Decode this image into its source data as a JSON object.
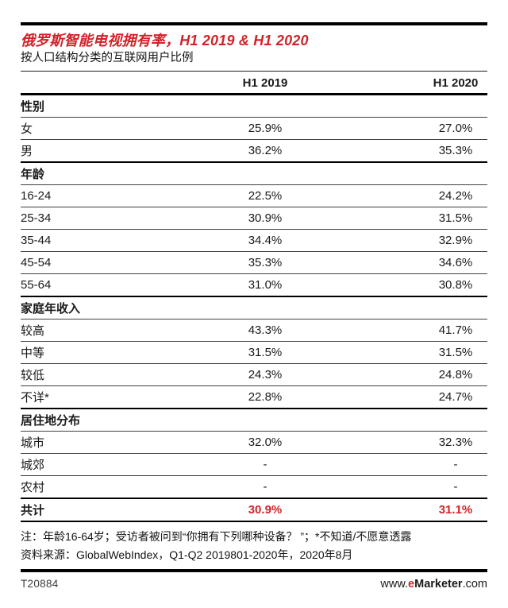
{
  "colors": {
    "accent": "#d2232a",
    "rule": "#000000",
    "text": "#1a1a1a"
  },
  "header": {
    "title": "俄罗斯智能电视拥有率，H1 2019 & H1 2020",
    "subtitle": "按人口结构分类的互联网用户比例"
  },
  "chart_data": {
    "type": "table",
    "title": "俄罗斯智能电视拥有率，H1 2019 & H1 2020",
    "subtitle": "按人口结构分类的互联网用户比例",
    "columns": [
      "H1 2019",
      "H1 2020"
    ],
    "sections": [
      {
        "header": "性别",
        "rows": [
          {
            "label": "女",
            "h1_2019": "25.9%",
            "h1_2020": "27.0%"
          },
          {
            "label": "男",
            "h1_2019": "36.2%",
            "h1_2020": "35.3%"
          }
        ]
      },
      {
        "header": "年龄",
        "rows": [
          {
            "label": "16-24",
            "h1_2019": "22.5%",
            "h1_2020": "24.2%"
          },
          {
            "label": "25-34",
            "h1_2019": "30.9%",
            "h1_2020": "31.5%"
          },
          {
            "label": "35-44",
            "h1_2019": "34.4%",
            "h1_2020": "32.9%"
          },
          {
            "label": "45-54",
            "h1_2019": "35.3%",
            "h1_2020": "34.6%"
          },
          {
            "label": "55-64",
            "h1_2019": "31.0%",
            "h1_2020": "30.8%"
          }
        ]
      },
      {
        "header": "家庭年收入",
        "rows": [
          {
            "label": "较高",
            "h1_2019": "43.3%",
            "h1_2020": "41.7%"
          },
          {
            "label": "中等",
            "h1_2019": "31.5%",
            "h1_2020": "31.5%"
          },
          {
            "label": "较低",
            "h1_2019": "24.3%",
            "h1_2020": "24.8%"
          },
          {
            "label": "不详*",
            "h1_2019": "22.8%",
            "h1_2020": "24.7%"
          }
        ]
      },
      {
        "header": "居住地分布",
        "rows": [
          {
            "label": "城市",
            "h1_2019": "32.0%",
            "h1_2020": "32.3%"
          },
          {
            "label": "城郊",
            "h1_2019": "-",
            "h1_2020": "-"
          },
          {
            "label": "农村",
            "h1_2019": "-",
            "h1_2020": "-"
          }
        ]
      }
    ],
    "total": {
      "label": "共计",
      "h1_2019": "30.9%",
      "h1_2020": "31.1%"
    }
  },
  "notes": {
    "line1": "注：年龄16-64岁；受访者被问到“你拥有下列哪种设备？ ”；*不知道/不愿意透露",
    "line2": "资料来源：GlobalWebIndex，Q1-Q2 2019801-2020年，2020年8月"
  },
  "footer": {
    "chart_id": "T20884",
    "site": {
      "www": "www.",
      "e": "e",
      "marketer": "Marketer",
      "com": ".com"
    }
  }
}
